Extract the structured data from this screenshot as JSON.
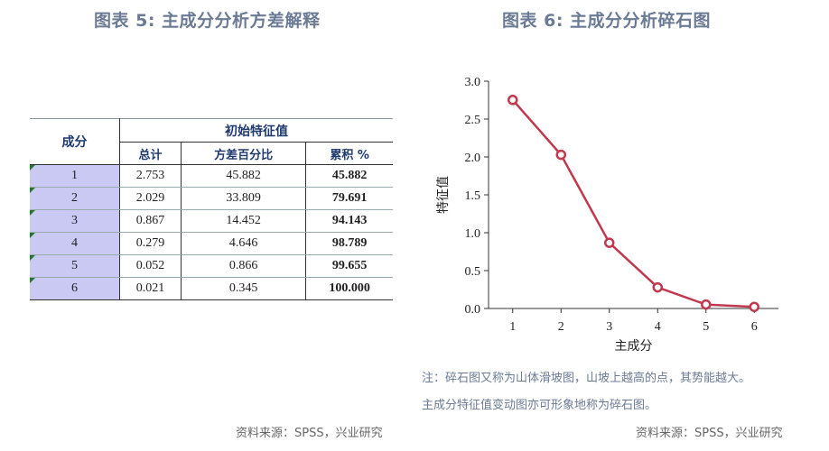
{
  "left_title": "图表 5:  主成分分析方差解释",
  "right_title": "图表 6:  主成分分析碎石图",
  "table": {
    "component_header": "成分",
    "group_header": "初始特征值",
    "sub_headers": [
      "总计",
      "方差百分比",
      "累积 %"
    ],
    "rows": [
      {
        "component": "1",
        "total": "2.753",
        "variance_pct": "45.882",
        "cumulative_pct": "45.882"
      },
      {
        "component": "2",
        "total": "2.029",
        "variance_pct": "33.809",
        "cumulative_pct": "79.691"
      },
      {
        "component": "3",
        "total": "0.867",
        "variance_pct": "14.452",
        "cumulative_pct": "94.143"
      },
      {
        "component": "4",
        "total": "0.279",
        "variance_pct": "4.646",
        "cumulative_pct": "98.789"
      },
      {
        "component": "5",
        "total": "0.052",
        "variance_pct": "0.866",
        "cumulative_pct": "99.655"
      },
      {
        "component": "6",
        "total": "0.021",
        "variance_pct": "0.345",
        "cumulative_pct": "100.000"
      }
    ]
  },
  "chart_data": {
    "type": "line",
    "title": "图表 6:  主成分分析碎石图",
    "xlabel": "主成分",
    "ylabel": "特征值",
    "x": [
      1,
      2,
      3,
      4,
      5,
      6
    ],
    "series": [
      {
        "values": [
          2.753,
          2.029,
          0.867,
          0.279,
          0.052,
          0.021
        ]
      }
    ],
    "xlim": [
      0.5,
      6.5
    ],
    "ylim": [
      0,
      3.0
    ],
    "y_ticks": [
      "0.0",
      "0.5",
      "1.0",
      "1.5",
      "2.0",
      "2.5",
      "3.0"
    ],
    "x_ticks": [
      "1",
      "2",
      "3",
      "4",
      "5",
      "6"
    ],
    "grid": false,
    "line_color": "#c0394e"
  },
  "notes": {
    "line1": "注：碎石图又称为山体滑坡图，山坡上越高的点，其势能越大。",
    "line2": "主成分特征值变动图亦可形象地称为碎石图。"
  },
  "source": {
    "left": "资料来源：SPSS，兴业研究",
    "right": "资料来源：SPSS，兴业研究"
  }
}
